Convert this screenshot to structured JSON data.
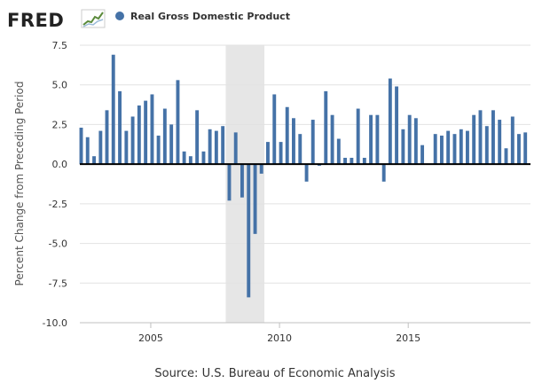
{
  "header": {
    "logo_text": "FRED",
    "logo_icon": "chart-line-icon",
    "legend_label": "Real Gross Domestic Product",
    "legend_color": "#4572a7"
  },
  "footer": {
    "source_text": "Source: U.S. Bureau of Economic Analysis"
  },
  "chart_data": {
    "type": "bar",
    "title": "",
    "xlabel": "",
    "ylabel": "Percent Change from Preceding Period",
    "ylim": [
      -10,
      7.5
    ],
    "yticks": [
      7.5,
      5.0,
      2.5,
      0.0,
      -2.5,
      -5.0,
      -7.5,
      -10.0
    ],
    "ytick_labels": [
      "7.5",
      "5.0",
      "2.5",
      "0.0",
      "-2.5",
      "-5.0",
      "-7.5",
      "-10.0"
    ],
    "xlim": [
      "2002-04-01",
      "2019-10-01"
    ],
    "xticks": [
      "2005-01-01",
      "2010-01-01",
      "2015-01-01"
    ],
    "xtick_labels": [
      "2005",
      "2010",
      "2015"
    ],
    "bar_color": "#4572a7",
    "recession_shading": {
      "start": "2007-12-01",
      "end": "2009-06-01",
      "color": "#e6e6e6"
    },
    "series": [
      {
        "name": "Real Gross Domestic Product",
        "x": [
          "2002-04-01",
          "2002-07-01",
          "2002-10-01",
          "2003-01-01",
          "2003-04-01",
          "2003-07-01",
          "2003-10-01",
          "2004-01-01",
          "2004-04-01",
          "2004-07-01",
          "2004-10-01",
          "2005-01-01",
          "2005-04-01",
          "2005-07-01",
          "2005-10-01",
          "2006-01-01",
          "2006-04-01",
          "2006-07-01",
          "2006-10-01",
          "2007-01-01",
          "2007-04-01",
          "2007-07-01",
          "2007-10-01",
          "2008-01-01",
          "2008-04-01",
          "2008-07-01",
          "2008-10-01",
          "2009-01-01",
          "2009-04-01",
          "2009-07-01",
          "2009-10-01",
          "2010-01-01",
          "2010-04-01",
          "2010-07-01",
          "2010-10-01",
          "2011-01-01",
          "2011-04-01",
          "2011-07-01",
          "2011-10-01",
          "2012-01-01",
          "2012-04-01",
          "2012-07-01",
          "2012-10-01",
          "2013-01-01",
          "2013-04-01",
          "2013-07-01",
          "2013-10-01",
          "2014-01-01",
          "2014-04-01",
          "2014-07-01",
          "2014-10-01",
          "2015-01-01",
          "2015-04-01",
          "2015-07-01",
          "2015-10-01",
          "2016-01-01",
          "2016-04-01",
          "2016-07-01",
          "2016-10-01",
          "2017-01-01",
          "2017-04-01",
          "2017-07-01",
          "2017-10-01",
          "2018-01-01",
          "2018-04-01",
          "2018-07-01",
          "2018-10-01",
          "2019-01-01",
          "2019-04-01"
        ],
        "values": [
          2.3,
          1.7,
          0.5,
          2.1,
          3.4,
          6.9,
          4.6,
          2.1,
          3.0,
          3.7,
          4.0,
          4.4,
          1.8,
          3.5,
          2.5,
          5.3,
          0.8,
          0.5,
          3.4,
          0.8,
          2.2,
          2.1,
          2.4,
          -2.3,
          2.0,
          -2.1,
          -8.4,
          -4.4,
          -0.6,
          1.4,
          4.4,
          1.4,
          3.6,
          2.9,
          1.9,
          -1.1,
          2.8,
          -0.1,
          4.6,
          3.1,
          1.6,
          0.4,
          0.4,
          3.5,
          0.4,
          3.1,
          3.1,
          -1.1,
          5.4,
          4.9,
          2.2,
          3.1,
          2.9,
          1.2,
          0.0,
          1.9,
          1.8,
          2.1,
          1.9,
          2.2,
          2.1,
          3.1,
          3.4,
          2.4,
          3.4,
          2.8,
          1.0,
          3.0,
          1.9
        ]
      },
      {
        "name": "",
        "x": [
          "2019-07-01"
        ],
        "values": [
          2.0
        ]
      }
    ]
  }
}
